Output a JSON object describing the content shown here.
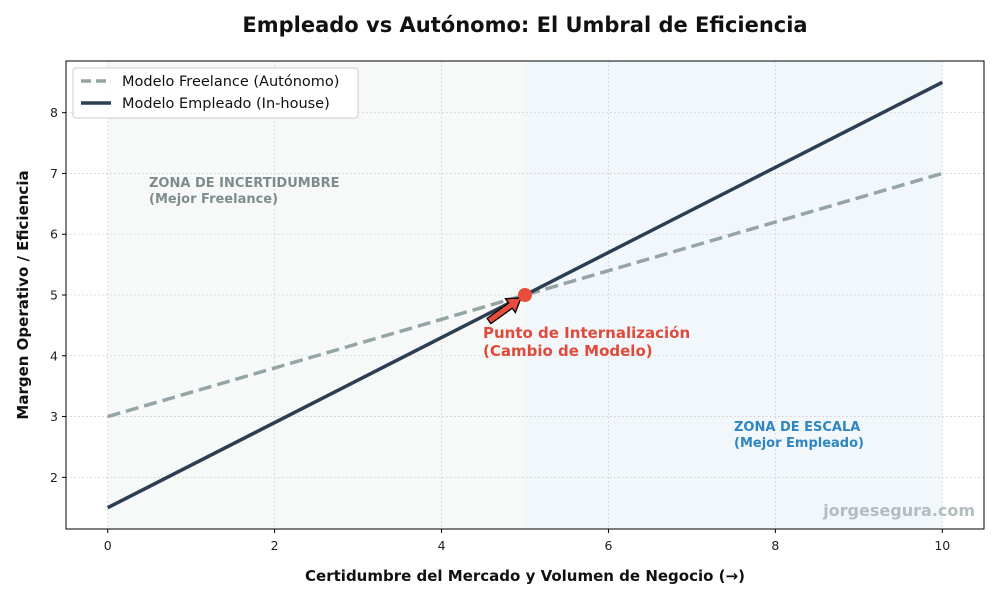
{
  "chart_data": {
    "type": "line",
    "title": "Empleado vs Autónomo: El Umbral de Eficiencia",
    "xlabel": "Certidumbre del Mercado y Volumen de Negocio  (→)",
    "ylabel": "Margen Operativo / Eficiencia",
    "xlim": [
      -0.5,
      10.5
    ],
    "ylim": [
      1.15,
      8.85
    ],
    "x_ticks": [
      0,
      2,
      4,
      6,
      8,
      10
    ],
    "y_ticks": [
      2,
      3,
      4,
      5,
      6,
      7,
      8
    ],
    "grid": true,
    "legend_position": "top-left",
    "series": [
      {
        "name": "Modelo Freelance (Autónomo)",
        "x": [
          0,
          10
        ],
        "y": [
          3,
          7
        ],
        "color": "#95a5a6",
        "style": "dashed"
      },
      {
        "name": "Modelo Empleado (In-house)",
        "x": [
          0,
          10
        ],
        "y": [
          1.5,
          8.5
        ],
        "color": "#2c3e50",
        "style": "solid"
      }
    ],
    "zones": [
      {
        "x_start": 0,
        "x_end": 5,
        "label_line1": "ZONA DE INCERTIDUMBRE",
        "label_line2": "(Mejor Freelance)",
        "color": "#7f8c8d",
        "fill": "#f7f9f9"
      },
      {
        "x_start": 5,
        "x_end": 10,
        "label_line1": "ZONA DE ESCALA",
        "label_line2": "(Mejor Empleado)",
        "color": "#2e86c1",
        "fill": "#f2f7fb"
      }
    ],
    "intersection": {
      "x": 5,
      "y": 5,
      "color": "#e74c3c",
      "label_line1": "Punto de Internalización",
      "label_line2": "(Cambio de Modelo)"
    },
    "watermark": "jorgesegura.com"
  }
}
